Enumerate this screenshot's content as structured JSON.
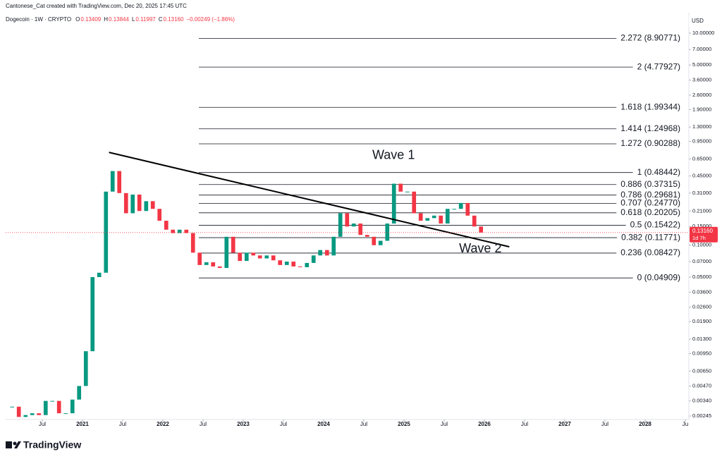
{
  "header": {
    "attribution": "Cantonese_Cat created with TradingView.com, Dec 20, 2025 17:45 UTC",
    "symbol": "Dogecoin · 1W · CRYPTO",
    "ohlc": [
      {
        "key": "O",
        "value": "0.13409"
      },
      {
        "key": "H",
        "value": "0.13844"
      },
      {
        "key": "L",
        "value": "0.11997"
      },
      {
        "key": "C",
        "value": "0.13160"
      }
    ],
    "change": "−0.00249 (−1.86%)",
    "currency": "USD"
  },
  "chart_data": {
    "type": "candlestick",
    "log_scale": true,
    "up_color": "#089981",
    "down_color": "#f23645",
    "x": [
      2020.125,
      2020.208,
      2020.292,
      2020.375,
      2020.458,
      2020.542,
      2020.625,
      2020.708,
      2020.792,
      2020.875,
      2020.958,
      2021.042,
      2021.125,
      2021.208,
      2021.292,
      2021.375,
      2021.458,
      2021.542,
      2021.625,
      2021.708,
      2021.792,
      2021.875,
      2021.958,
      2022.042,
      2022.125,
      2022.208,
      2022.292,
      2022.375,
      2022.458,
      2022.542,
      2022.625,
      2022.708,
      2022.792,
      2022.875,
      2022.958,
      2023.042,
      2023.125,
      2023.208,
      2023.292,
      2023.375,
      2023.458,
      2023.542,
      2023.625,
      2023.708,
      2023.792,
      2023.875,
      2023.958,
      2024.042,
      2024.125,
      2024.208,
      2024.292,
      2024.375,
      2024.458,
      2024.542,
      2024.625,
      2024.708,
      2024.792,
      2024.875,
      2024.958,
      2025.042,
      2025.125,
      2025.208,
      2025.292,
      2025.375,
      2025.458,
      2025.542,
      2025.625,
      2025.708,
      2025.792,
      2025.875,
      2025.958
    ],
    "series": [
      {
        "name": "Dogecoin",
        "values": [
          0.003,
          0.0024,
          0.0025,
          0.0026,
          0.0025,
          0.0034,
          0.0034,
          0.0026,
          0.0026,
          0.0035,
          0.0047,
          0.01,
          0.05,
          0.055,
          0.32,
          0.5,
          0.31,
          0.2,
          0.3,
          0.21,
          0.26,
          0.22,
          0.17,
          0.14,
          0.13,
          0.14,
          0.13,
          0.085,
          0.065,
          0.069,
          0.063,
          0.061,
          0.12,
          0.085,
          0.071,
          0.085,
          0.08,
          0.075,
          0.08,
          0.072,
          0.065,
          0.07,
          0.063,
          0.062,
          0.068,
          0.08,
          0.09,
          0.08,
          0.12,
          0.2,
          0.15,
          0.16,
          0.125,
          0.12,
          0.1,
          0.11,
          0.16,
          0.38,
          0.32,
          0.32,
          0.2,
          0.17,
          0.18,
          0.19,
          0.16,
          0.22,
          0.22,
          0.25,
          0.19,
          0.15,
          0.1316
        ]
      }
    ],
    "last_price": {
      "value": 0.1316,
      "label": "0.13160"
    },
    "countdown": "1d 7h",
    "xlim": [
      2020.044,
      2028.544
    ],
    "ylim": [
      0.00227,
      15.1
    ],
    "xticks": [
      {
        "value": 2020.5,
        "label": "Jul"
      },
      2021,
      {
        "value": 2021.5,
        "label": "Jul"
      },
      2022,
      {
        "value": 2022.5,
        "label": "Jul"
      },
      2023,
      {
        "value": 2023.5,
        "label": "Jul"
      },
      2024,
      {
        "value": 2024.5,
        "label": "Jul"
      },
      2025,
      {
        "value": 2025.5,
        "label": "Jul"
      },
      2026,
      {
        "value": 2026.5,
        "label": "Jul"
      },
      2027,
      {
        "value": 2027.5,
        "label": "Jul"
      },
      2028,
      {
        "value": 2028.5,
        "label": "Ju"
      }
    ],
    "yticks": [
      {
        "value": 10,
        "label": "10.00000"
      },
      {
        "value": 7,
        "label": "7.00000"
      },
      {
        "value": 5,
        "label": "5.00000"
      },
      {
        "value": 3.6,
        "label": "3.60000"
      },
      {
        "value": 2.6,
        "label": "2.60000"
      },
      {
        "value": 1.9,
        "label": "1.90000"
      },
      {
        "value": 1.3,
        "label": "1.30000"
      },
      {
        "value": 0.95,
        "label": "0.95000"
      },
      {
        "value": 0.65,
        "label": "0.65000"
      },
      {
        "value": 0.45,
        "label": "0.45000"
      },
      {
        "value": 0.31,
        "label": "0.31000"
      },
      {
        "value": 0.21,
        "label": "0.21000"
      },
      {
        "value": 0.15,
        "label": "0.15000"
      },
      {
        "value": 0.1,
        "label": "0.10000"
      },
      {
        "value": 0.07,
        "label": "0.07000"
      },
      {
        "value": 0.05,
        "label": "0.05000"
      },
      {
        "value": 0.036,
        "label": "0.03600"
      },
      {
        "value": 0.026,
        "label": "0.02600"
      },
      {
        "value": 0.019,
        "label": "0.01900"
      },
      {
        "value": 0.013,
        "label": "0.01300"
      },
      {
        "value": 0.0095,
        "label": "0.00950"
      },
      {
        "value": 0.0065,
        "label": "0.00650"
      },
      {
        "value": 0.0047,
        "label": "0.00470"
      },
      {
        "value": 0.0034,
        "label": "0.00340"
      },
      {
        "value": 0.00245,
        "label": "0.00245"
      }
    ],
    "fib_levels": [
      {
        "value": 8.90771,
        "label": "2.272 (8.90771)"
      },
      {
        "value": 4.77927,
        "label": "2 (4.77927)"
      },
      {
        "value": 1.99344,
        "label": "1.618 (1.99344)"
      },
      {
        "value": 1.24968,
        "label": "1.414 (1.24968)"
      },
      {
        "value": 0.90288,
        "label": "1.272 (0.90288)"
      },
      {
        "value": 0.48442,
        "label": "1 (0.48442)"
      },
      {
        "value": 0.37315,
        "label": "0.886 (0.37315)"
      },
      {
        "value": 0.29681,
        "label": "0.786 (0.29681)"
      },
      {
        "value": 0.2477,
        "label": "0.707 (0.24770)"
      },
      {
        "value": 0.20205,
        "label": "0.618 (0.20205)"
      },
      {
        "value": 0.15422,
        "label": "0.5 (0.15422)"
      },
      {
        "value": 0.11771,
        "label": "0.382 (0.11771)"
      },
      {
        "value": 0.08427,
        "label": "0.236 (0.08427)"
      },
      {
        "value": 0.04909,
        "label": "0 (0.04909)"
      }
    ],
    "trendline": {
      "x": [
        2021.33,
        2026.31
      ],
      "y": [
        0.75,
        0.0966
      ]
    },
    "annotations": [
      {
        "text": "Wave 1",
        "x": 2024.87,
        "y": 0.7
      },
      {
        "text": "Wave 2",
        "x": 2025.95,
        "y": 0.092
      }
    ]
  },
  "footer": {
    "brand": "TradingView"
  }
}
